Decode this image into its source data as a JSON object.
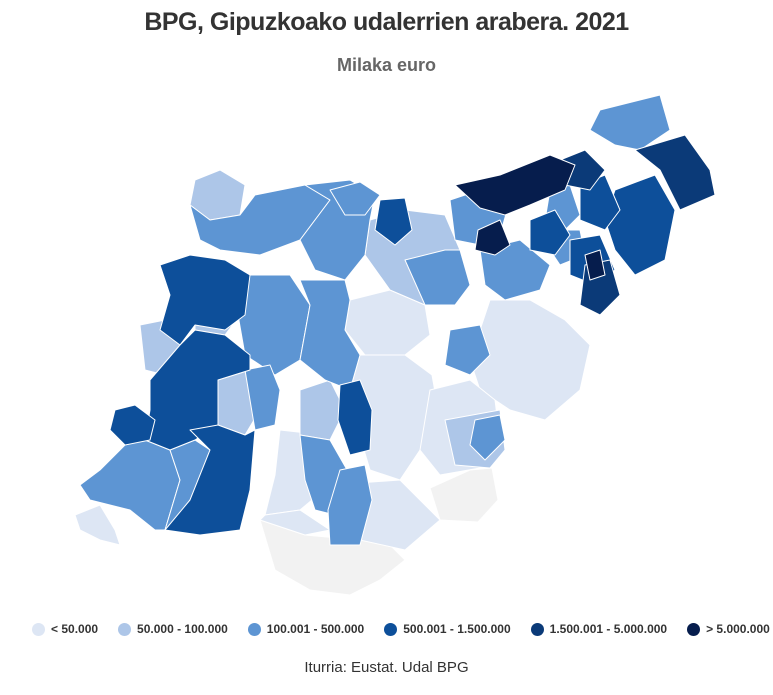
{
  "title": "BPG, Gipuzkoako udalerrien arabera. 2021",
  "subtitle": "Milaka euro",
  "legend": [
    {
      "label": "< 50.000",
      "color": "#dde6f4"
    },
    {
      "label": "50.000 - 100.000",
      "color": "#adc6e8"
    },
    {
      "label": "100.001 - 500.000",
      "color": "#5d95d3"
    },
    {
      "label": "500.001 - 1.500.000",
      "color": "#0d4f9a"
    },
    {
      "label": "1.500.001 - 5.000.000",
      "color": "#0b3a78"
    },
    {
      "label": "> 5.000.000",
      "color": "#061d4d"
    }
  ],
  "no_data_color": "#f2f2f2",
  "source": "Iturria: Eustat. Udal BPG"
}
